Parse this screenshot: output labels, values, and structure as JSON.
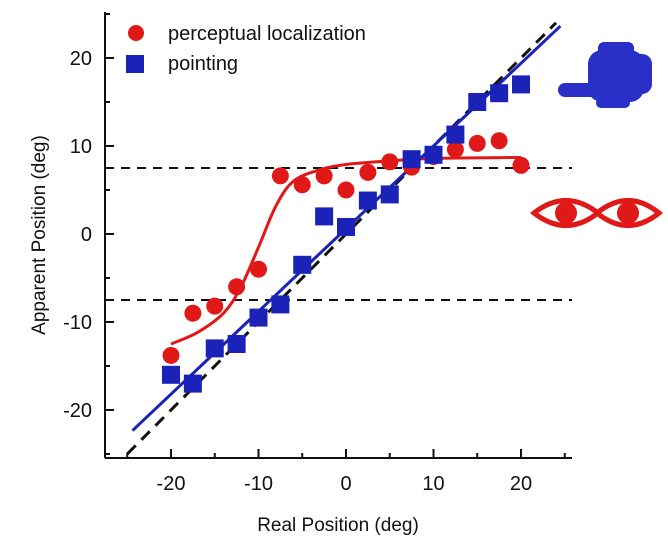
{
  "chart_data": {
    "type": "scatter",
    "xlabel": "Real Position (deg)",
    "ylabel": "Apparent Position (deg)",
    "xlim": [
      -25,
      25
    ],
    "ylim": [
      -25,
      25
    ],
    "xticks": [
      -20,
      -10,
      0,
      10,
      20
    ],
    "yticks": [
      -20,
      -10,
      0,
      10,
      20
    ],
    "tick_labels_x": [
      "-20",
      "-10",
      "0",
      "10",
      "20"
    ],
    "tick_labels_y": [
      "-20",
      "-10",
      "0",
      "10",
      "20"
    ],
    "legend_position": "top-left",
    "reference_lines": {
      "identity": {
        "slope": 1,
        "intercept": 0,
        "style": "dashed",
        "color": "#111111"
      },
      "horizontal": [
        {
          "y": 7.5,
          "style": "dashed",
          "color": "#111111"
        },
        {
          "y": -7.5,
          "style": "dashed",
          "color": "#111111"
        }
      ]
    },
    "series": [
      {
        "name": "perceptual localization",
        "marker": "circle",
        "color": "#e01818",
        "points": [
          {
            "x": -20,
            "y": -13.8
          },
          {
            "x": -17.5,
            "y": -9.0
          },
          {
            "x": -15,
            "y": -8.2
          },
          {
            "x": -12.5,
            "y": -6.0
          },
          {
            "x": -10,
            "y": -4.0
          },
          {
            "x": -7.5,
            "y": 6.6
          },
          {
            "x": -5,
            "y": 5.6
          },
          {
            "x": -2.5,
            "y": 6.6
          },
          {
            "x": 0,
            "y": 5.0
          },
          {
            "x": 2.5,
            "y": 7.0
          },
          {
            "x": 5,
            "y": 8.2
          },
          {
            "x": 7.5,
            "y": 7.6
          },
          {
            "x": 10,
            "y": 8.8
          },
          {
            "x": 12.5,
            "y": 9.6
          },
          {
            "x": 15,
            "y": 10.3
          },
          {
            "x": 17.5,
            "y": 10.6
          },
          {
            "x": 20,
            "y": 7.8
          }
        ],
        "fit": {
          "type": "sigmoid",
          "color": "#e01818",
          "x_range": [
            -20,
            20
          ],
          "points": [
            {
              "x": -20,
              "y": -12.5
            },
            {
              "x": -17,
              "y": -11.2
            },
            {
              "x": -14,
              "y": -9.0
            },
            {
              "x": -12,
              "y": -6.0
            },
            {
              "x": -10,
              "y": -1.5
            },
            {
              "x": -8,
              "y": 3.2
            },
            {
              "x": -6,
              "y": 6.0
            },
            {
              "x": -3,
              "y": 7.3
            },
            {
              "x": 0,
              "y": 7.9
            },
            {
              "x": 5,
              "y": 8.3
            },
            {
              "x": 10,
              "y": 8.6
            },
            {
              "x": 20,
              "y": 8.7
            }
          ]
        }
      },
      {
        "name": "pointing",
        "marker": "square",
        "color": "#1a22b8",
        "points": [
          {
            "x": -20,
            "y": -16.0
          },
          {
            "x": -17.5,
            "y": -17.0
          },
          {
            "x": -15,
            "y": -13.0
          },
          {
            "x": -12.5,
            "y": -12.5
          },
          {
            "x": -10,
            "y": -9.5
          },
          {
            "x": -7.5,
            "y": -8.0
          },
          {
            "x": -5,
            "y": -3.5
          },
          {
            "x": -2.5,
            "y": 2.0
          },
          {
            "x": 0,
            "y": 0.8
          },
          {
            "x": 2.5,
            "y": 3.8
          },
          {
            "x": 5,
            "y": 4.5
          },
          {
            "x": 7.5,
            "y": 8.5
          },
          {
            "x": 10,
            "y": 9.0
          },
          {
            "x": 12.5,
            "y": 11.3
          },
          {
            "x": 15,
            "y": 15.0
          },
          {
            "x": 17.5,
            "y": 16.0
          },
          {
            "x": 20,
            "y": 17.0
          }
        ],
        "fit": {
          "type": "linear",
          "color": "#1a22b8",
          "slope": 0.94,
          "intercept": 0.6,
          "x_range": [
            -24.4,
            24.5
          ]
        }
      }
    ],
    "annotations": [
      {
        "icon": "pointing-hand-icon",
        "color": "#2a2fc8",
        "near": "pointing series"
      },
      {
        "icon": "eyes-icon",
        "color": "#e01818",
        "near": "perceptual localization series"
      }
    ]
  }
}
